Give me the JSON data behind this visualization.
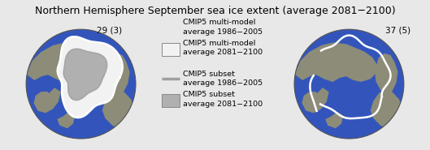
{
  "title": "Northern Hemisphere September sea ice extent (average 2081−2100)",
  "title_fontsize": 9.0,
  "bg_color": "#c8c8c8",
  "ocean_color": "#3355bb",
  "land_color": "#8c8c78",
  "ice_white": "#f2f2f2",
  "ice_gray": "#b0b0b0",
  "line_white": "#ffffff",
  "line_gray": "#a0a0a0",
  "label_left": "29 (3)",
  "label_right": "37 (5)",
  "legend_entries": [
    {
      "label": "CMIP5 multi-model\naverage 1986−2005",
      "type": "line",
      "color": "#e8e8e8",
      "lw": 2.5
    },
    {
      "label": "CMIP5 multi-model\naverage 2081−2100",
      "type": "patch",
      "facecolor": "#f2f2f2",
      "edgecolor": "#888888"
    },
    {
      "label": "CMIP5 subset\naverage 1986−2005",
      "type": "line",
      "color": "#a0a0a0",
      "lw": 2.5
    },
    {
      "label": "CMIP5 subset\naverage 2081−2100",
      "type": "patch",
      "facecolor": "#b0b0b0",
      "edgecolor": "#888888"
    }
  ],
  "legend_fontsize": 6.8,
  "annotation_fontsize": 7.5,
  "fig_bg": "#e8e8e8"
}
